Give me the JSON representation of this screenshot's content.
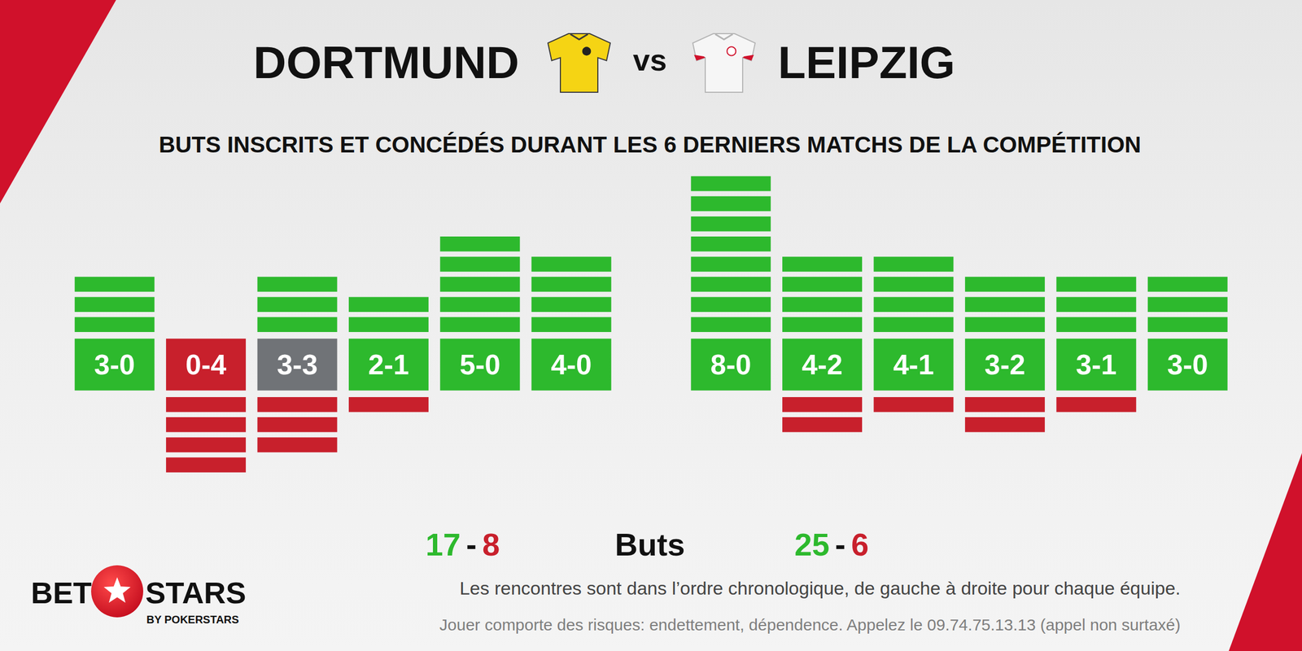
{
  "vs": "vs",
  "subtitle": "BUTS INSCRITS ET CONCÉDÉS DURANT LES 6 DERNIERS MATCHS DE LA COMPÉTITION",
  "totals_label": "Buts",
  "totals_separator": "-",
  "footnote": "Les rencontres sont dans l’ordre chronologique, de gauche à droite pour chaque équipe.",
  "disclaimer": "Jouer comporte des risques: endettement, dépendence. Appelez le 09.74.75.13.13 (appel non surtaxé)",
  "logo": {
    "left": "BET",
    "right": "STARS",
    "byline": "BY POKERSTARS"
  },
  "chart_data": [
    {
      "type": "bar",
      "title": "DORTMUND",
      "categories": [
        "3-0",
        "0-4",
        "3-3",
        "2-1",
        "5-0",
        "4-0"
      ],
      "series": [
        {
          "color": "#2db92d",
          "values": [
            3,
            0,
            3,
            2,
            5,
            4
          ]
        },
        {
          "color": "#c8202c",
          "values": [
            0,
            4,
            3,
            1,
            0,
            0
          ]
        }
      ],
      "colors": [
        "#2db92d",
        "#c8202c",
        "#707377",
        "#2db92d",
        "#2db92d",
        "#2db92d"
      ],
      "totals": [
        17,
        8
      ],
      "ylim": [
        0,
        8
      ],
      "tick_labels": false,
      "grid": false
    },
    {
      "type": "bar",
      "title": "LEIPZIG",
      "categories": [
        "8-0",
        "4-2",
        "4-1",
        "3-2",
        "3-1",
        "3-0"
      ],
      "series": [
        {
          "color": "#2db92d",
          "values": [
            8,
            4,
            4,
            3,
            3,
            3
          ]
        },
        {
          "color": "#c8202c",
          "values": [
            0,
            2,
            1,
            2,
            1,
            0
          ]
        }
      ],
      "colors": [
        "#2db92d",
        "#2db92d",
        "#2db92d",
        "#2db92d",
        "#2db92d",
        "#2db92d"
      ],
      "totals": [
        25,
        6
      ],
      "ylim": [
        0,
        8
      ],
      "tick_labels": false,
      "grid": false
    }
  ]
}
